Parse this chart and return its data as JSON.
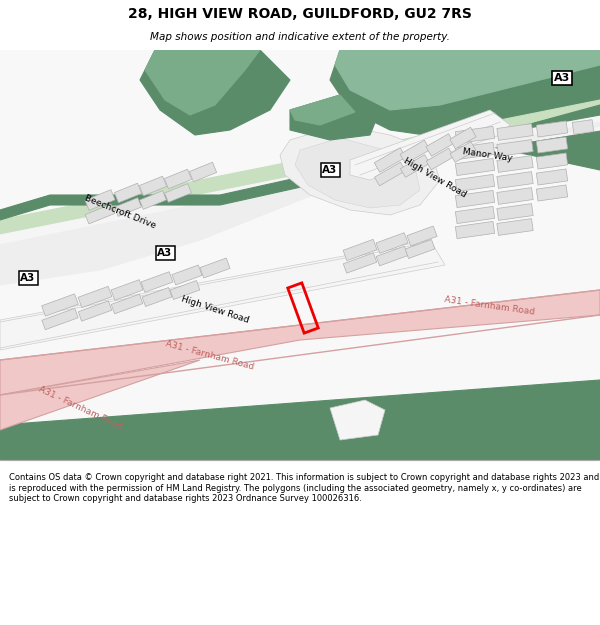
{
  "title_line1": "28, HIGH VIEW ROAD, GUILDFORD, GU2 7RS",
  "title_line2": "Map shows position and indicative extent of the property.",
  "footer_text": "Contains OS data © Crown copyright and database right 2021. This information is subject to Crown copyright and database rights 2023 and is reproduced with the permission of HM Land Registry. The polygons (including the associated geometry, namely x, y co-ordinates) are subject to Crown copyright and database rights 2023 Ordnance Survey 100026316.",
  "bg_color": "#ffffff",
  "green_dark": "#5a8c6a",
  "green_light": "#c8dfc0",
  "pink_road": "#f0c8c8",
  "pink_outline": "#d4a0a0",
  "red_box": "#ee0000",
  "building_fill": "#e0e0e0",
  "building_outline": "#b0b0b0",
  "white": "#ffffff",
  "road_white": "#f0f0f0"
}
